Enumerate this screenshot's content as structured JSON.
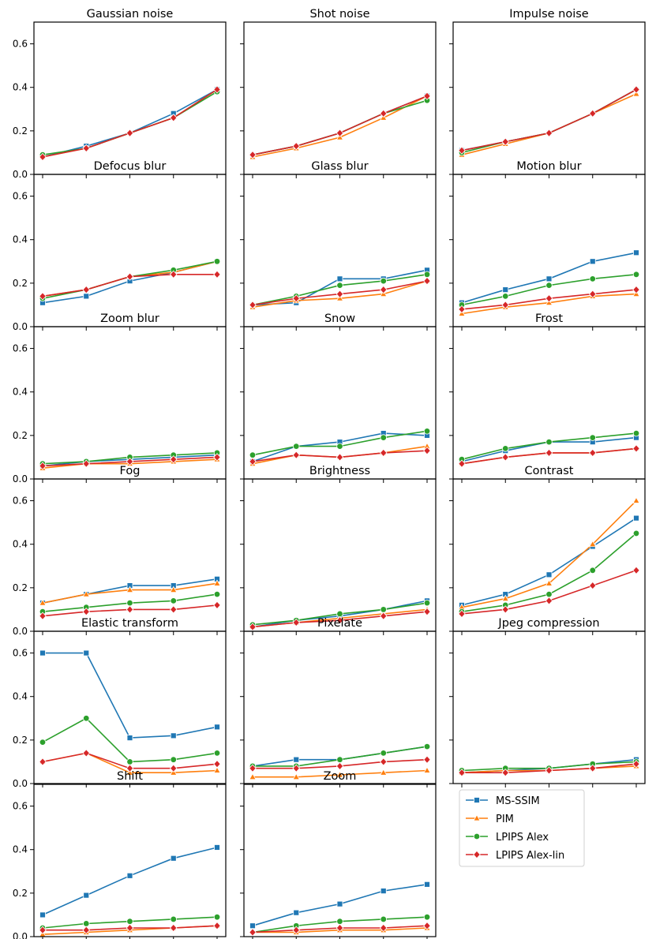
{
  "chart_data": {
    "type": "line",
    "x": [
      1,
      2,
      3,
      4,
      5
    ],
    "xticks": [
      1,
      2,
      3,
      4,
      5
    ],
    "ylim": [
      0,
      0.7
    ],
    "yticks": [
      0.0,
      0.2,
      0.4,
      0.6
    ],
    "ytick_labels": [
      "0.0",
      "0.2",
      "0.4",
      "0.6"
    ],
    "legend": {
      "placement": "grid-cell-bottom-right",
      "entries": [
        {
          "name": "MS-SSIM",
          "color": "#1f77b4",
          "marker": "square"
        },
        {
          "name": "PIM",
          "color": "#ff7f0e",
          "marker": "triangle"
        },
        {
          "name": "LPIPS Alex",
          "color": "#2ca02c",
          "marker": "circle"
        },
        {
          "name": "LPIPS Alex-lin",
          "color": "#d62728",
          "marker": "diamond"
        }
      ]
    },
    "panels": [
      {
        "title": "Gaussian noise",
        "series": [
          {
            "name": "MS-SSIM",
            "values": [
              0.08,
              0.13,
              0.19,
              0.28,
              0.39
            ]
          },
          {
            "name": "PIM",
            "values": [
              0.08,
              0.12,
              0.19,
              0.26,
              0.39
            ]
          },
          {
            "name": "LPIPS Alex",
            "values": [
              0.09,
              0.12,
              0.19,
              0.26,
              0.38
            ]
          },
          {
            "name": "LPIPS Alex-lin",
            "values": [
              0.08,
              0.12,
              0.19,
              0.26,
              0.39
            ]
          }
        ]
      },
      {
        "title": "Shot noise",
        "series": [
          {
            "name": "MS-SSIM",
            "values": [
              0.09,
              0.13,
              0.19,
              0.28,
              0.36
            ]
          },
          {
            "name": "PIM",
            "values": [
              0.08,
              0.12,
              0.17,
              0.26,
              0.36
            ]
          },
          {
            "name": "LPIPS Alex",
            "values": [
              0.09,
              0.13,
              0.19,
              0.28,
              0.34
            ]
          },
          {
            "name": "LPIPS Alex-lin",
            "values": [
              0.09,
              0.13,
              0.19,
              0.28,
              0.36
            ]
          }
        ]
      },
      {
        "title": "Impulse noise",
        "series": [
          {
            "name": "MS-SSIM",
            "values": [
              0.11,
              0.15,
              0.19,
              0.28,
              0.39
            ]
          },
          {
            "name": "PIM",
            "values": [
              0.09,
              0.14,
              0.19,
              0.28,
              0.37
            ]
          },
          {
            "name": "LPIPS Alex",
            "values": [
              0.1,
              0.15,
              0.19,
              0.28,
              0.39
            ]
          },
          {
            "name": "LPIPS Alex-lin",
            "values": [
              0.11,
              0.15,
              0.19,
              0.28,
              0.39
            ]
          }
        ]
      },
      {
        "title": "Defocus blur",
        "series": [
          {
            "name": "MS-SSIM",
            "values": [
              0.11,
              0.14,
              0.21,
              0.25,
              0.3
            ]
          },
          {
            "name": "PIM",
            "values": [
              0.14,
              0.17,
              0.23,
              0.25,
              0.3
            ]
          },
          {
            "name": "LPIPS Alex",
            "values": [
              0.13,
              0.17,
              0.23,
              0.26,
              0.3
            ]
          },
          {
            "name": "LPIPS Alex-lin",
            "values": [
              0.14,
              0.17,
              0.23,
              0.24,
              0.24
            ]
          }
        ]
      },
      {
        "title": "Glass blur",
        "series": [
          {
            "name": "MS-SSIM",
            "values": [
              0.1,
              0.11,
              0.22,
              0.22,
              0.26
            ]
          },
          {
            "name": "PIM",
            "values": [
              0.09,
              0.12,
              0.13,
              0.15,
              0.21
            ]
          },
          {
            "name": "LPIPS Alex",
            "values": [
              0.1,
              0.14,
              0.19,
              0.21,
              0.24
            ]
          },
          {
            "name": "LPIPS Alex-lin",
            "values": [
              0.1,
              0.13,
              0.15,
              0.17,
              0.21
            ]
          }
        ]
      },
      {
        "title": "Motion blur",
        "series": [
          {
            "name": "MS-SSIM",
            "values": [
              0.11,
              0.17,
              0.22,
              0.3,
              0.34
            ]
          },
          {
            "name": "PIM",
            "values": [
              0.06,
              0.09,
              0.11,
              0.14,
              0.15
            ]
          },
          {
            "name": "LPIPS Alex",
            "values": [
              0.1,
              0.14,
              0.19,
              0.22,
              0.24
            ]
          },
          {
            "name": "LPIPS Alex-lin",
            "values": [
              0.08,
              0.1,
              0.13,
              0.15,
              0.17
            ]
          }
        ]
      },
      {
        "title": "Zoom blur",
        "series": [
          {
            "name": "MS-SSIM",
            "values": [
              0.06,
              0.08,
              0.09,
              0.1,
              0.11
            ]
          },
          {
            "name": "PIM",
            "values": [
              0.05,
              0.07,
              0.07,
              0.08,
              0.09
            ]
          },
          {
            "name": "LPIPS Alex",
            "values": [
              0.07,
              0.08,
              0.1,
              0.11,
              0.12
            ]
          },
          {
            "name": "LPIPS Alex-lin",
            "values": [
              0.06,
              0.07,
              0.08,
              0.09,
              0.1
            ]
          }
        ]
      },
      {
        "title": "Snow",
        "series": [
          {
            "name": "MS-SSIM",
            "values": [
              0.08,
              0.15,
              0.17,
              0.21,
              0.2
            ]
          },
          {
            "name": "PIM",
            "values": [
              0.07,
              0.11,
              0.1,
              0.12,
              0.15
            ]
          },
          {
            "name": "LPIPS Alex",
            "values": [
              0.11,
              0.15,
              0.15,
              0.19,
              0.22
            ]
          },
          {
            "name": "LPIPS Alex-lin",
            "values": [
              0.08,
              0.11,
              0.1,
              0.12,
              0.13
            ]
          }
        ]
      },
      {
        "title": "Frost",
        "series": [
          {
            "name": "MS-SSIM",
            "values": [
              0.08,
              0.13,
              0.17,
              0.17,
              0.19
            ]
          },
          {
            "name": "PIM",
            "values": [
              0.07,
              0.1,
              0.12,
              0.12,
              0.14
            ]
          },
          {
            "name": "LPIPS Alex",
            "values": [
              0.09,
              0.14,
              0.17,
              0.19,
              0.21
            ]
          },
          {
            "name": "LPIPS Alex-lin",
            "values": [
              0.07,
              0.1,
              0.12,
              0.12,
              0.14
            ]
          }
        ]
      },
      {
        "title": "Fog",
        "series": [
          {
            "name": "MS-SSIM",
            "values": [
              0.13,
              0.17,
              0.21,
              0.21,
              0.24
            ]
          },
          {
            "name": "PIM",
            "values": [
              0.13,
              0.17,
              0.19,
              0.19,
              0.22
            ]
          },
          {
            "name": "LPIPS Alex",
            "values": [
              0.09,
              0.11,
              0.13,
              0.14,
              0.17
            ]
          },
          {
            "name": "LPIPS Alex-lin",
            "values": [
              0.07,
              0.09,
              0.1,
              0.1,
              0.12
            ]
          }
        ]
      },
      {
        "title": "Brightness",
        "series": [
          {
            "name": "MS-SSIM",
            "values": [
              0.02,
              0.05,
              0.07,
              0.1,
              0.14
            ]
          },
          {
            "name": "PIM",
            "values": [
              0.02,
              0.04,
              0.06,
              0.08,
              0.1
            ]
          },
          {
            "name": "LPIPS Alex",
            "values": [
              0.03,
              0.05,
              0.08,
              0.1,
              0.13
            ]
          },
          {
            "name": "LPIPS Alex-lin",
            "values": [
              0.02,
              0.04,
              0.05,
              0.07,
              0.09
            ]
          }
        ]
      },
      {
        "title": "Contrast",
        "series": [
          {
            "name": "MS-SSIM",
            "values": [
              0.12,
              0.17,
              0.26,
              0.39,
              0.52
            ]
          },
          {
            "name": "PIM",
            "values": [
              0.11,
              0.15,
              0.22,
              0.4,
              0.6
            ]
          },
          {
            "name": "LPIPS Alex",
            "values": [
              0.09,
              0.12,
              0.17,
              0.28,
              0.45
            ]
          },
          {
            "name": "LPIPS Alex-lin",
            "values": [
              0.08,
              0.1,
              0.14,
              0.21,
              0.28
            ]
          }
        ]
      },
      {
        "title": "Elastic transform",
        "series": [
          {
            "name": "MS-SSIM",
            "values": [
              0.6,
              0.6,
              0.21,
              0.22,
              0.26
            ]
          },
          {
            "name": "PIM",
            "values": [
              0.1,
              0.14,
              0.05,
              0.05,
              0.06
            ]
          },
          {
            "name": "LPIPS Alex",
            "values": [
              0.19,
              0.3,
              0.1,
              0.11,
              0.14
            ]
          },
          {
            "name": "LPIPS Alex-lin",
            "values": [
              0.1,
              0.14,
              0.07,
              0.07,
              0.09
            ]
          }
        ]
      },
      {
        "title": "Pixelate",
        "series": [
          {
            "name": "MS-SSIM",
            "values": [
              0.08,
              0.11,
              0.11,
              0.14,
              0.17
            ]
          },
          {
            "name": "PIM",
            "values": [
              0.03,
              0.03,
              0.04,
              0.05,
              0.06
            ]
          },
          {
            "name": "LPIPS Alex",
            "values": [
              0.08,
              0.08,
              0.11,
              0.14,
              0.17
            ]
          },
          {
            "name": "LPIPS Alex-lin",
            "values": [
              0.07,
              0.07,
              0.08,
              0.1,
              0.11
            ]
          }
        ]
      },
      {
        "title": "Jpeg compression",
        "series": [
          {
            "name": "MS-SSIM",
            "values": [
              0.05,
              0.06,
              0.07,
              0.09,
              0.11
            ]
          },
          {
            "name": "PIM",
            "values": [
              0.05,
              0.06,
              0.06,
              0.07,
              0.08
            ]
          },
          {
            "name": "LPIPS Alex",
            "values": [
              0.06,
              0.07,
              0.07,
              0.09,
              0.1
            ]
          },
          {
            "name": "LPIPS Alex-lin",
            "values": [
              0.05,
              0.05,
              0.06,
              0.07,
              0.09
            ]
          }
        ]
      },
      {
        "title": "Shift",
        "series": [
          {
            "name": "MS-SSIM",
            "values": [
              0.1,
              0.19,
              0.28,
              0.36,
              0.41
            ]
          },
          {
            "name": "PIM",
            "values": [
              0.01,
              0.02,
              0.03,
              0.04,
              0.05
            ]
          },
          {
            "name": "LPIPS Alex",
            "values": [
              0.04,
              0.06,
              0.07,
              0.08,
              0.09
            ]
          },
          {
            "name": "LPIPS Alex-lin",
            "values": [
              0.03,
              0.03,
              0.04,
              0.04,
              0.05
            ]
          }
        ]
      },
      {
        "title": "Zoom",
        "series": [
          {
            "name": "MS-SSIM",
            "values": [
              0.05,
              0.11,
              0.15,
              0.21,
              0.24
            ]
          },
          {
            "name": "PIM",
            "values": [
              0.02,
              0.02,
              0.03,
              0.03,
              0.04
            ]
          },
          {
            "name": "LPIPS Alex",
            "values": [
              0.02,
              0.05,
              0.07,
              0.08,
              0.09
            ]
          },
          {
            "name": "LPIPS Alex-lin",
            "values": [
              0.02,
              0.03,
              0.04,
              0.04,
              0.05
            ]
          }
        ]
      }
    ]
  }
}
